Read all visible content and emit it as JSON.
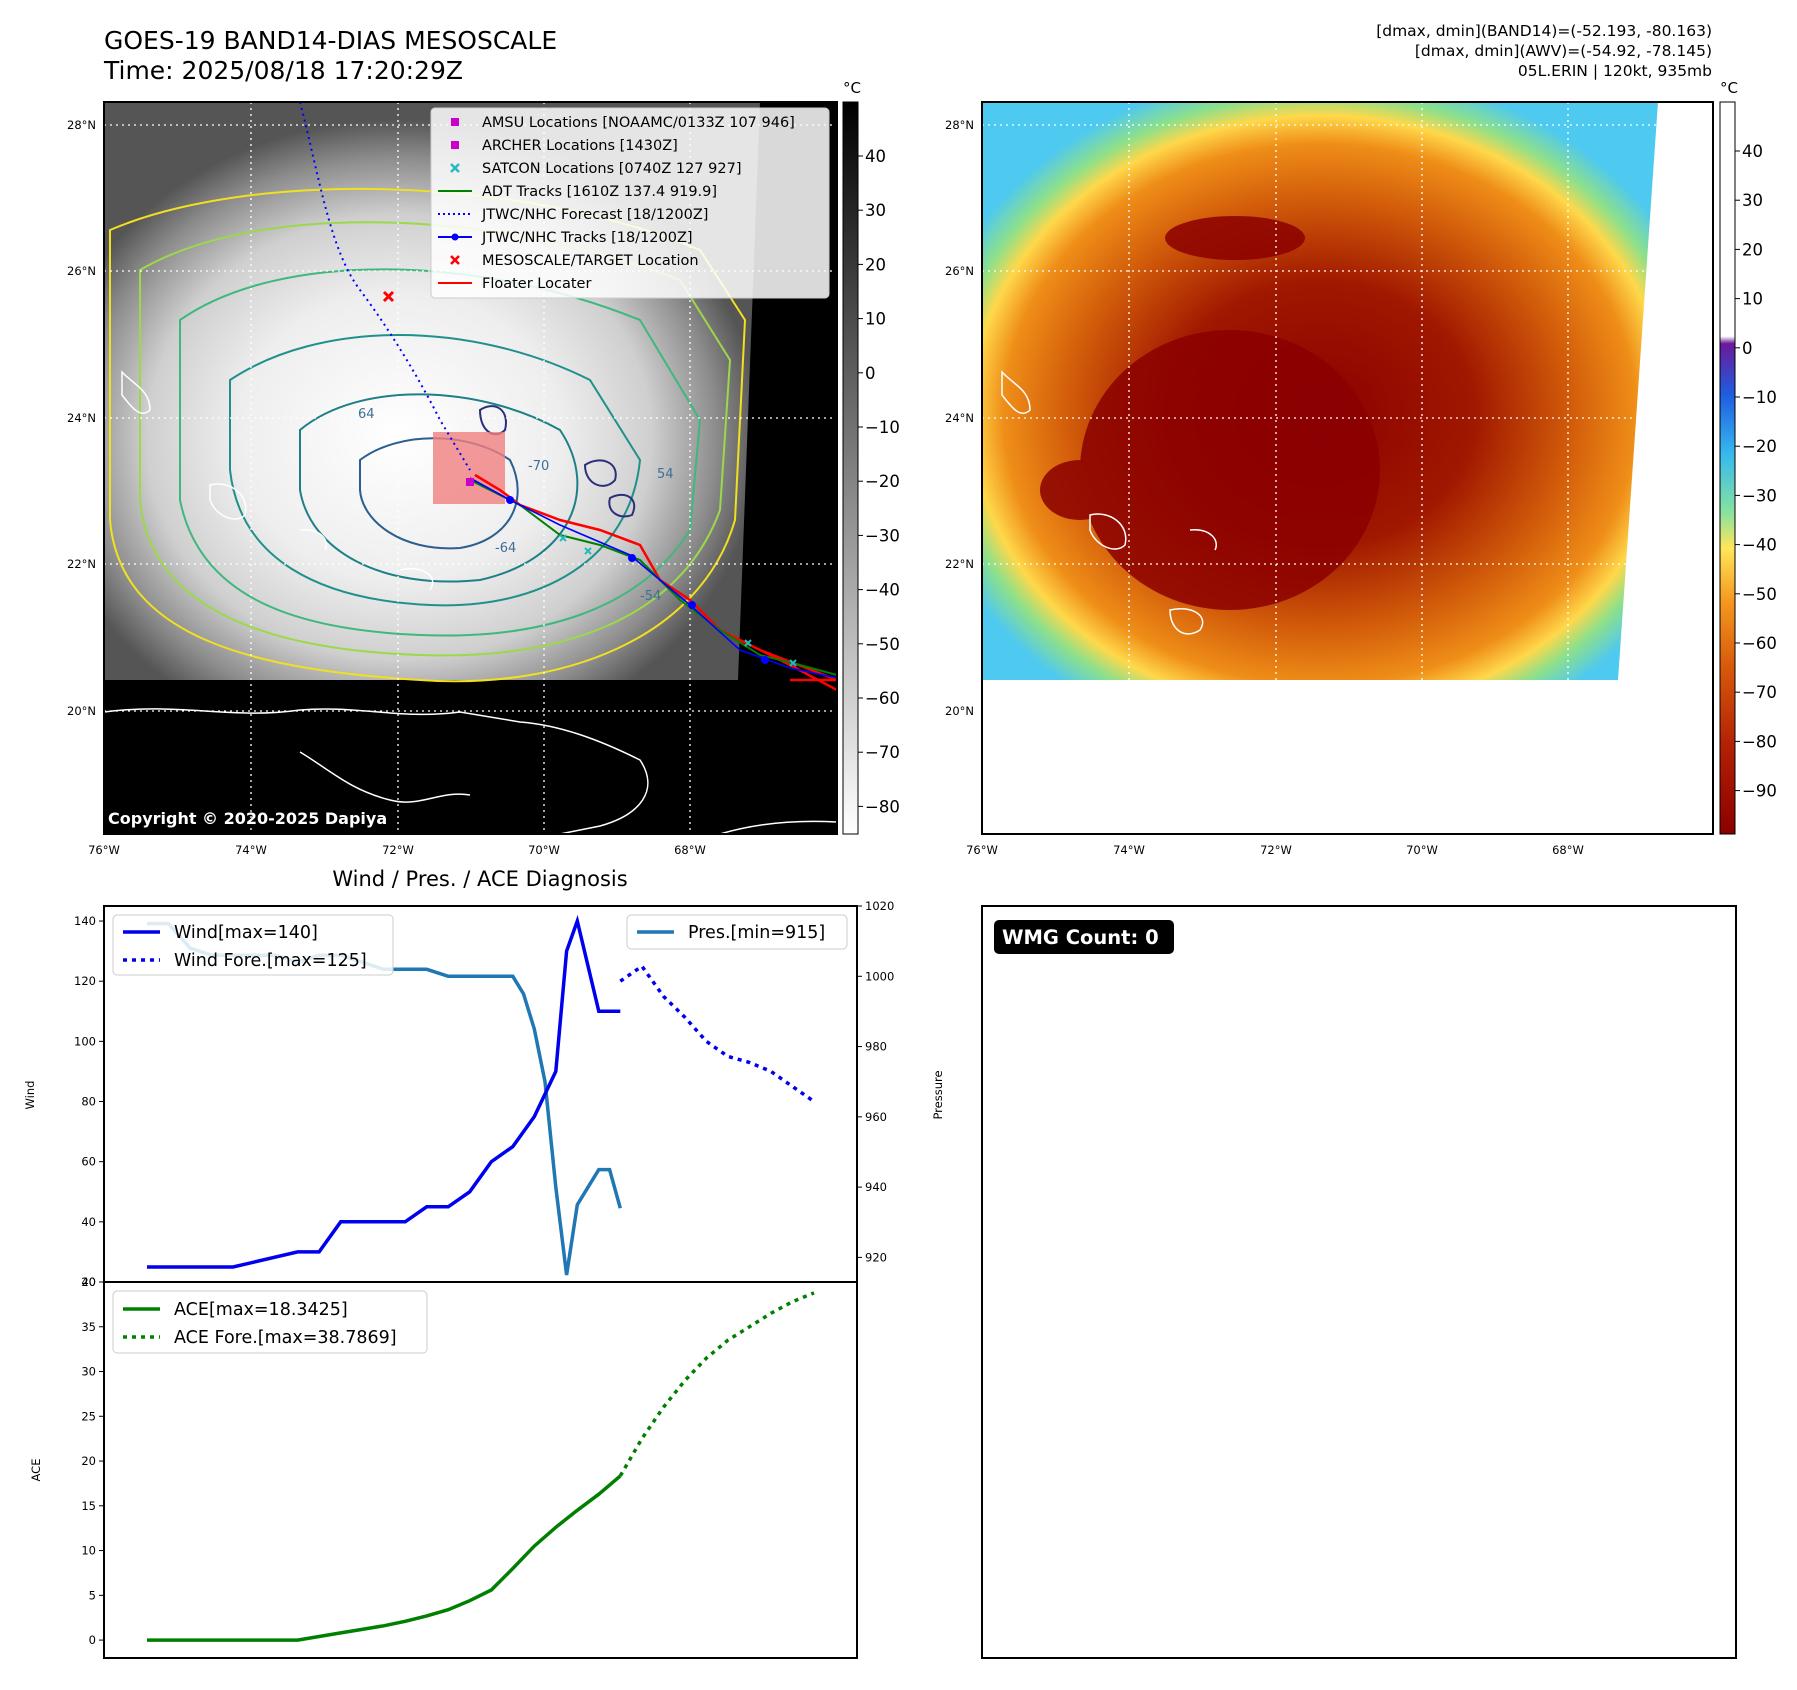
{
  "header": {
    "title_line1": "GOES-19 BAND14-DIAS MESOSCALE",
    "title_line2": "Time: 2025/08/18 17:20:29Z",
    "right_line1": "[dmax, dmin](BAND14)=(-52.193, -80.163)",
    "right_line2": "[dmax, dmin](AWV)=(-54.92, -78.145)",
    "right_line3": "05L.ERIN | 120kt, 935mb"
  },
  "map": {
    "lon_labels": [
      "76°W",
      "74°W",
      "72°W",
      "70°W",
      "68°W"
    ],
    "lat_labels": [
      "28°N",
      "26°N",
      "24°N",
      "22°N",
      "20°N"
    ],
    "copyright": "Copyright © 2020-2025 Dapiya",
    "contour_labels": [
      "64",
      "54",
      "-64",
      "-54",
      "-70"
    ],
    "legend": [
      {
        "label": "AMSU Locations [NOAAMC/0133Z 107 946]",
        "marker": "square",
        "color": "#cc00cc"
      },
      {
        "label": "ARCHER Locations [1430Z]",
        "marker": "square",
        "color": "#cc00cc"
      },
      {
        "label": "SATCON Locations [0740Z 127 927]",
        "marker": "x",
        "color": "#22bbbb"
      },
      {
        "label": "ADT Tracks [1610Z 137.4 919.9]",
        "marker": "line",
        "color": "#008000"
      },
      {
        "label": "JTWC/NHC Forecast [18/1200Z]",
        "marker": "dotted",
        "color": "#0000ff"
      },
      {
        "label": "JTWC/NHC Tracks [18/1200Z]",
        "marker": "line-dot",
        "color": "#0000ff"
      },
      {
        "label": "MESOSCALE/TARGET Location",
        "marker": "x",
        "color": "#ff0000"
      },
      {
        "label": "Floater Locater",
        "marker": "line",
        "color": "#ff0000"
      }
    ]
  },
  "colorbar1": {
    "unit": "°C",
    "ticks": [
      "40",
      "30",
      "20",
      "10",
      "0",
      "−10",
      "−20",
      "−30",
      "−40",
      "−50",
      "−60",
      "−70",
      "−80"
    ]
  },
  "colorbar2": {
    "unit": "°C",
    "ticks": [
      "40",
      "30",
      "20",
      "10",
      "0",
      "−10",
      "−20",
      "−30",
      "−40",
      "−50",
      "−60",
      "−70",
      "−80",
      "−90"
    ]
  },
  "panel3": {
    "title": "Wind / Pres. / ACE Diagnosis",
    "ylabel_wind": "Wind",
    "ylabel_pres": "Pressure",
    "ylabel_ace": "ACE",
    "legend_wind": "Wind[max=140]",
    "legend_wind_fore": "Wind Fore.[max=125]",
    "legend_pres": "Pres.[min=915]",
    "legend_ace": "ACE[max=18.3425]",
    "legend_ace_fore": "ACE Fore.[max=38.7869]"
  },
  "panel4": {
    "badge": "WMG Count: 0"
  },
  "colors": {
    "wind": "#0000ee",
    "pressure": "#1f77b4",
    "ace": "#008000",
    "floater": "#ff0000"
  },
  "chart_data": [
    {
      "type": "line",
      "title": "Wind / Pres. / ACE Diagnosis",
      "ylabel": "Wind",
      "ylim": [
        20,
        145
      ],
      "y2label": "Pressure",
      "y2lim": [
        913,
        1020
      ],
      "series": [
        {
          "name": "Wind[max=140]",
          "x": [
            0,
            4,
            7,
            8,
            9,
            10,
            11,
            12,
            13,
            14,
            15,
            16,
            17,
            18,
            19,
            19.5,
            20,
            21,
            22
          ],
          "values": [
            25,
            25,
            30,
            30,
            40,
            40,
            40,
            40,
            45,
            45,
            50,
            60,
            65,
            75,
            90,
            130,
            140,
            110,
            110
          ]
        },
        {
          "name": "Wind Fore.[max=125]",
          "x": [
            22,
            23,
            24,
            25,
            26,
            27,
            28,
            29,
            30,
            31
          ],
          "values": [
            120,
            125,
            115,
            108,
            100,
            95,
            93,
            90,
            85,
            80
          ]
        },
        {
          "name": "Pres.[min=915]",
          "x": [
            0,
            1,
            2,
            3,
            4,
            5,
            6,
            7,
            8,
            9,
            10,
            11,
            12,
            13,
            14,
            15,
            16,
            17,
            17.5,
            18,
            18.5,
            19,
            19.5,
            20,
            20.5,
            21,
            21.5,
            22
          ],
          "values": [
            1015,
            1015,
            1008,
            1006,
            1006,
            1006,
            1006,
            1004,
            1006,
            1006,
            1004,
            1002,
            1002,
            1002,
            1000,
            1000,
            1000,
            1000,
            995,
            985,
            970,
            940,
            915,
            935,
            940,
            945,
            945,
            934
          ]
        }
      ]
    },
    {
      "type": "line",
      "ylabel": "ACE",
      "ylim": [
        -2,
        40
      ],
      "series": [
        {
          "name": "ACE[max=18.3425]",
          "x": [
            0,
            4,
            7,
            8,
            9,
            10,
            11,
            12,
            13,
            14,
            15,
            16,
            17,
            18,
            19,
            20,
            21,
            22
          ],
          "values": [
            0,
            0,
            0,
            0.4,
            0.8,
            1.2,
            1.6,
            2.1,
            2.7,
            3.4,
            4.4,
            5.6,
            8.0,
            10.5,
            12.6,
            14.5,
            16.3,
            18.3425
          ]
        },
        {
          "name": "ACE Fore.[max=38.7869]",
          "x": [
            22,
            23,
            24,
            25,
            26,
            27,
            28,
            29,
            30,
            31
          ],
          "values": [
            18.3425,
            22.5,
            26,
            29,
            31.5,
            33.5,
            35,
            36.5,
            37.8,
            38.7869
          ]
        }
      ]
    }
  ]
}
